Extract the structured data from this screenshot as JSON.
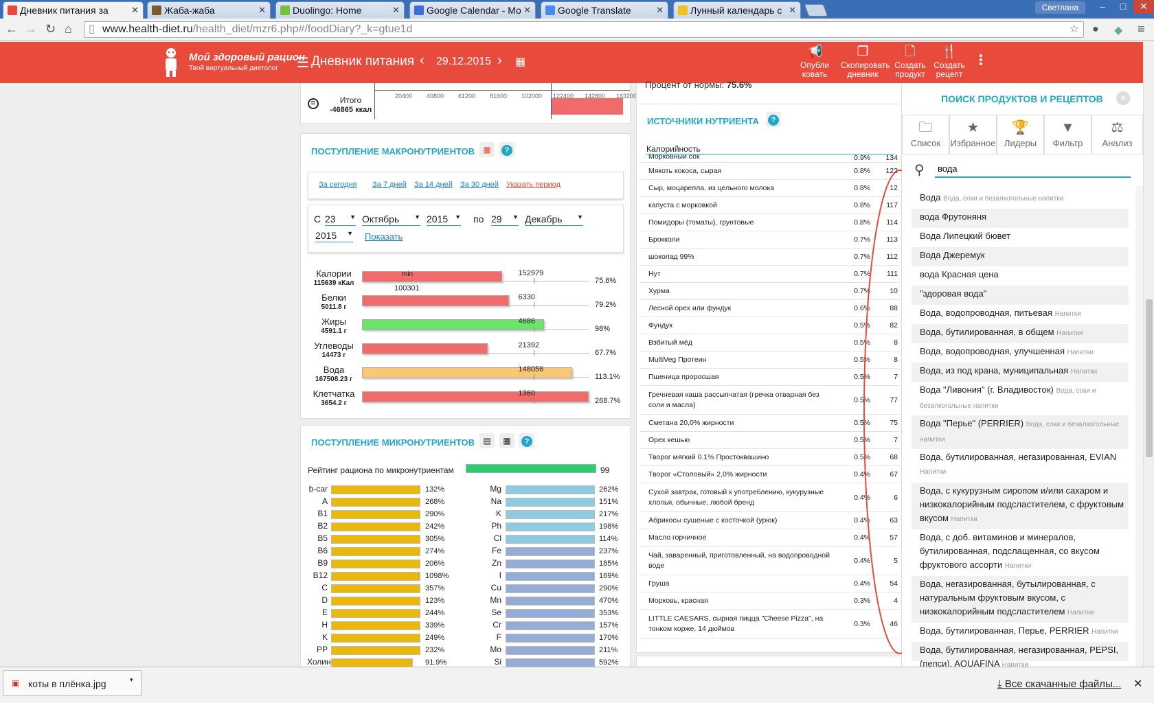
{
  "tabs": [
    {
      "title": "Дневник питания за",
      "color": "#e84b3c"
    },
    {
      "title": "Жаба-жаба",
      "color": "#7a5c2e"
    },
    {
      "title": "Duolingo: Home",
      "color": "#77c043"
    },
    {
      "title": "Google Calendar - Mo",
      "color": "#3b6fd6"
    },
    {
      "title": "Google Translate",
      "color": "#4a8af4"
    },
    {
      "title": "Лунный календарь с",
      "color": "#f0c020"
    }
  ],
  "user": "Светлана",
  "url": {
    "host": "www.health-diet.ru",
    "path": "/health_diet/mzr6.php#/foodDiary?_k=gtue1d"
  },
  "header": {
    "brand": "Мой здоровый рацион",
    "tagline": "Твой виртуальный диетолог",
    "diary_title": "Дневник питания",
    "date": "29.12.2015",
    "actions": [
      {
        "line1": "Опубли",
        "line2": "ковать",
        "icon": "megaphone-icon"
      },
      {
        "line1": "Скопировать",
        "line2": "дневник",
        "icon": "copy-icon"
      },
      {
        "line1": "Создать",
        "line2": "продукт",
        "icon": "document-icon"
      },
      {
        "line1": "Создать",
        "line2": "рецепт",
        "icon": "cutlery-icon"
      }
    ]
  },
  "top_chart": {
    "total_label": "Итого",
    "total_value": "-46865 ккал",
    "ticks": [
      "20400",
      "40800",
      "61200",
      "81600",
      "102000",
      "122400",
      "142800",
      "163200"
    ]
  },
  "macro": {
    "title": "ПОСТУПЛЕНИЕ МАКРОНУТРИЕНТОВ",
    "periods": [
      "За сегодня",
      "За 7 дней",
      "За 14 дней",
      "За 30 дней"
    ],
    "custom_period": "Указать период",
    "from_label": "С",
    "from_day": "23",
    "from_month": "Октябрь",
    "from_year": "2015",
    "to_label": "по",
    "to_day": "29",
    "to_month": "Декабрь",
    "to_year": "2015",
    "show": "Показать",
    "min_label": "min",
    "min_value": "100301",
    "rows": [
      {
        "name": "Калории",
        "amount": "115639 кКал",
        "norm": "152979",
        "pct": "75.6%",
        "fill": 0.756,
        "color": "#f26b6b"
      },
      {
        "name": "Белки",
        "amount": "5011.8 г",
        "norm": "6330",
        "pct": "79.2%",
        "fill": 0.792,
        "color": "#f26b6b"
      },
      {
        "name": "Жиры",
        "amount": "4591.1 г",
        "norm": "4686",
        "pct": "98%",
        "fill": 0.98,
        "color": "#6de36d"
      },
      {
        "name": "Углеводы",
        "amount": "14473 г",
        "norm": "21392",
        "pct": "67.7%",
        "fill": 0.677,
        "color": "#f26b6b"
      },
      {
        "name": "Вода",
        "amount": "167508.23 г",
        "norm": "148056",
        "pct": "113.1%",
        "fill": 1.131,
        "color": "#f9c877"
      },
      {
        "name": "Клетчатка",
        "amount": "3654.2 г",
        "norm": "1360",
        "pct": "268.7%",
        "fill": 2.687,
        "color": "#f26b6b"
      }
    ]
  },
  "micro": {
    "title": "ПОСТУПЛЕНИЕ МИКРОНУТРИЕНТОВ",
    "rating_label": "Рейтинг рациона по микронутриентам",
    "rating_value": "99",
    "vitamins": [
      {
        "n": "b-car",
        "p": "132%"
      },
      {
        "n": "A",
        "p": "268%"
      },
      {
        "n": "B1",
        "p": "290%"
      },
      {
        "n": "B2",
        "p": "242%"
      },
      {
        "n": "B5",
        "p": "305%"
      },
      {
        "n": "B6",
        "p": "274%"
      },
      {
        "n": "B9",
        "p": "206%"
      },
      {
        "n": "B12",
        "p": "1098%"
      },
      {
        "n": "C",
        "p": "357%"
      },
      {
        "n": "D",
        "p": "123%"
      },
      {
        "n": "E",
        "p": "244%"
      },
      {
        "n": "H",
        "p": "339%"
      },
      {
        "n": "K",
        "p": "249%"
      },
      {
        "n": "PP",
        "p": "232%"
      },
      {
        "n": "Холин",
        "p": "91.9%"
      }
    ],
    "minerals": [
      {
        "n": "Mg",
        "p": "262%"
      },
      {
        "n": "Na",
        "p": "151%"
      },
      {
        "n": "K",
        "p": "217%"
      },
      {
        "n": "Ph",
        "p": "198%"
      },
      {
        "n": "Cl",
        "p": "114%"
      },
      {
        "n": "Fe",
        "p": "237%"
      },
      {
        "n": "Zn",
        "p": "185%"
      },
      {
        "n": "I",
        "p": "169%"
      },
      {
        "n": "Cu",
        "p": "290%"
      },
      {
        "n": "Mn",
        "p": "470%"
      },
      {
        "n": "Se",
        "p": "353%"
      },
      {
        "n": "Cr",
        "p": "157%"
      },
      {
        "n": "F",
        "p": "170%"
      },
      {
        "n": "Mo",
        "p": "211%"
      },
      {
        "n": "Si",
        "p": "592%"
      }
    ]
  },
  "sources": {
    "percent_label": "Процент от нормы:",
    "percent_value": "75.6%",
    "title": "ИСТОЧНИКИ НУТРИЕНТА",
    "nutrient": "Калорийность",
    "rows": [
      {
        "name": "Морковный сок",
        "pct": "0.9%",
        "kcal": "134"
      },
      {
        "name": "Мякоть кокоса, сырая",
        "pct": "0.8%",
        "kcal": "122"
      },
      {
        "name": "Сыр, моцарелла, из цельного молока",
        "pct": "0.8%",
        "kcal": "12"
      },
      {
        "name": "капуста с морковкой",
        "pct": "0.8%",
        "kcal": "117"
      },
      {
        "name": "Помидоры (томаты), грунтовые",
        "pct": "0.8%",
        "kcal": "114"
      },
      {
        "name": "Брокколи",
        "pct": "0.7%",
        "kcal": "113"
      },
      {
        "name": "шоколад 99%",
        "pct": "0.7%",
        "kcal": "112"
      },
      {
        "name": "Нут",
        "pct": "0.7%",
        "kcal": "111"
      },
      {
        "name": "Хурма",
        "pct": "0.7%",
        "kcal": "10"
      },
      {
        "name": "Лесной орех или фундук",
        "pct": "0.6%",
        "kcal": "88"
      },
      {
        "name": "Фундук",
        "pct": "0.5%",
        "kcal": "82"
      },
      {
        "name": "Взбитый мёд",
        "pct": "0.5%",
        "kcal": "8"
      },
      {
        "name": "MultiVeg Протеин",
        "pct": "0.5%",
        "kcal": "8"
      },
      {
        "name": "Пшеница проросшая",
        "pct": "0.5%",
        "kcal": "7"
      },
      {
        "name": "Гречневая каша рассыпчатая (гречка отварная без соли и масла)",
        "pct": "0.5%",
        "kcal": "77"
      },
      {
        "name": "Сметана 20,0% жирности",
        "pct": "0.5%",
        "kcal": "75"
      },
      {
        "name": "Орех кешью",
        "pct": "0.5%",
        "kcal": "7"
      },
      {
        "name": "Творог мягкий 0.1% Простоквашино",
        "pct": "0.5%",
        "kcal": "68"
      },
      {
        "name": "Творог «Столовый» 2,0% жирности",
        "pct": "0.4%",
        "kcal": "67"
      },
      {
        "name": "Сухой завтрак, готовый к употреблению, кукурузные хлопья, обычные, любой бренд",
        "pct": "0.4%",
        "kcal": "6"
      },
      {
        "name": "Абрикосы сушеные с косточкой (урюк)",
        "pct": "0.4%",
        "kcal": "63"
      },
      {
        "name": "Масло горчичное",
        "pct": "0.4%",
        "kcal": "57"
      },
      {
        "name": "Чай, заваренный, приготовленный, на водопроводной воде",
        "pct": "0.4%",
        "kcal": "5"
      },
      {
        "name": "Груша",
        "pct": "0.4%",
        "kcal": "54"
      },
      {
        "name": "Морковь, красная",
        "pct": "0.3%",
        "kcal": "4"
      },
      {
        "name": "LITTLE CAESARS, сырная пицца \"Cheese Pizza\", на тонком корже, 14 дюймов",
        "pct": "0.3%",
        "kcal": "46"
      }
    ]
  },
  "sidebar": {
    "title": "ПОИСК ПРОДУКТОВ И РЕЦЕПТОВ",
    "tabs": [
      {
        "label": "Список",
        "icon": "folder-icon"
      },
      {
        "label": "Избранное",
        "icon": "star-icon"
      },
      {
        "label": "Лидеры",
        "icon": "trophy-icon"
      },
      {
        "label": "Фильтр",
        "icon": "filter-icon"
      },
      {
        "label": "Анализ",
        "icon": "scales-icon"
      }
    ],
    "search_value": "вода",
    "results": [
      {
        "text": "Вода",
        "cat": "Вода, соки и безалкогольные напитки"
      },
      {
        "text": "вода Фрутоняня",
        "cat": ""
      },
      {
        "text": "Вода Липецкий бювет",
        "cat": ""
      },
      {
        "text": "Вода Джеремук",
        "cat": ""
      },
      {
        "text": "вода Красная цена",
        "cat": ""
      },
      {
        "text": "\"здоровая вода\"",
        "cat": ""
      },
      {
        "text": "Вода, водопроводная, питьевая",
        "cat": "Напитки"
      },
      {
        "text": "Вода, бутилированная, в общем",
        "cat": "Напитки"
      },
      {
        "text": "Вода, водопроводная, улучшенная",
        "cat": "Напитки"
      },
      {
        "text": "Вода, из под крана, муниципальная",
        "cat": "Напитки"
      },
      {
        "text": "Вода \"Ливония\" (г. Владивосток)",
        "cat": "Вода, соки и безалкогольные напитки"
      },
      {
        "text": "Вода \"Перье\" (PERRIER)",
        "cat": "Вода, соки и безалкогольные напитки"
      },
      {
        "text": "Вода, бутилированная, негазированная, EVIAN",
        "cat": "Напитки"
      },
      {
        "text": "Вода, с кукурузным сиропом и/или сахаром и низкокалорийным подсластителем, с фруктовым вкусом",
        "cat": "Напитки"
      },
      {
        "text": "Вода, с доб. витаминов и минералов, бутилированная, подслащенная, со вкусом фруктового ассорти",
        "cat": "Напитки"
      },
      {
        "text": "Вода, негазированная, бутылированная, с натуральным фруктовым вкусом, с низкокалорийным подсластителем",
        "cat": "Напитки"
      },
      {
        "text": "Вода, бутилированная, Перье, PERRIER",
        "cat": "Напитки"
      },
      {
        "text": "Вода, бутилированная, негазированная, PEPSI, (пепси), AQUAFINA",
        "cat": "Напитки"
      }
    ]
  },
  "downloads": {
    "file": "коты в плёнка.jpg",
    "all": "Все скачанные файлы..."
  }
}
